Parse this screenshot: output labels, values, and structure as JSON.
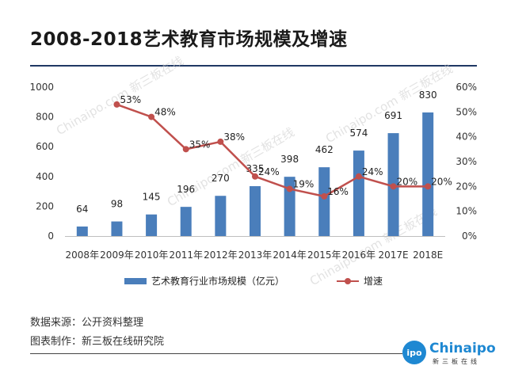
{
  "title": "2008-2018艺术教育市场规模及增速",
  "legend": {
    "bar_label": "艺术教育行业市场规模（亿元）",
    "line_label": "增速"
  },
  "notes": {
    "source": "数据来源：公开资料整理",
    "producer": "图表制作：新三板在线研究院"
  },
  "logo": {
    "mark": "ipo",
    "name": "Chinaipo",
    "sub": "新三板在线"
  },
  "watermark_text": "Chinaipo.com 新三板在线",
  "colors": {
    "bar": "#4a7ebb",
    "line": "#c0504d",
    "rule": "#1f3864",
    "logo": "#1e88d2"
  },
  "chart_data": {
    "type": "bar",
    "title": "2008-2018艺术教育市场规模及增速",
    "categories": [
      "2008年",
      "2009年",
      "2010年",
      "2011年",
      "2012年",
      "2013年",
      "2014年",
      "2015年",
      "2016年",
      "2017E",
      "2018E"
    ],
    "series": [
      {
        "name": "艺术教育行业市场规模（亿元）",
        "type": "bar",
        "axis": "left",
        "values": [
          64,
          98,
          145,
          196,
          270,
          335,
          398,
          462,
          574,
          691,
          830
        ],
        "labels": [
          "64",
          "98",
          "145",
          "196",
          "270",
          "335",
          "398",
          "462",
          "574",
          "691",
          "830"
        ]
      },
      {
        "name": "增速",
        "type": "line",
        "axis": "right",
        "values": [
          null,
          53,
          48,
          35,
          38,
          24,
          19,
          16,
          24,
          20,
          20
        ],
        "labels": [
          "",
          "53%",
          "48%",
          "35%",
          "38%",
          "24%",
          "19%",
          "16%",
          "24%",
          "20%",
          "20%"
        ]
      }
    ],
    "y_left": {
      "ticks": [
        "0",
        "200",
        "400",
        "600",
        "800",
        "1000"
      ],
      "range": [
        0,
        1000
      ]
    },
    "y_right": {
      "ticks": [
        "0%",
        "10%",
        "20%",
        "30%",
        "40%",
        "50%",
        "60%"
      ],
      "range": [
        0,
        60
      ]
    },
    "grid": false,
    "legend_position": "bottom"
  }
}
